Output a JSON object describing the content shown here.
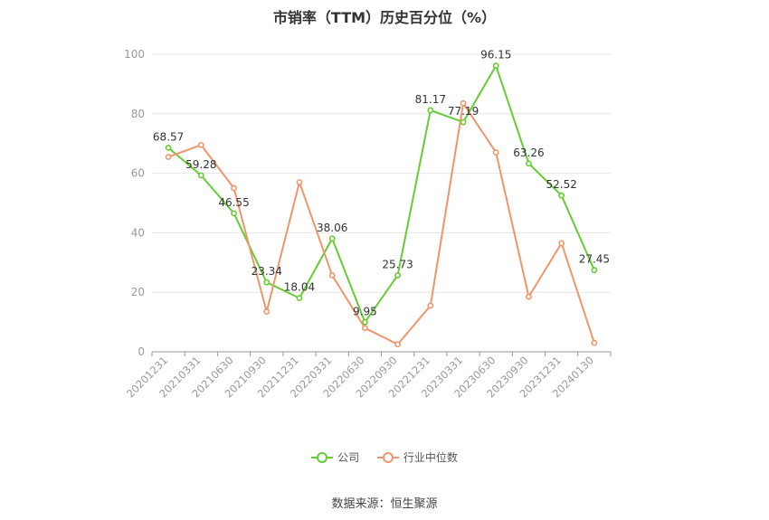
{
  "chart_data": {
    "type": "line",
    "title": "市销率（TTM）历史百分位（%）",
    "categories": [
      "20201231",
      "20210331",
      "20210630",
      "20210930",
      "20211231",
      "20220331",
      "20220630",
      "20220930",
      "20221231",
      "20230331",
      "20230630",
      "20230930",
      "20231231",
      "20240130"
    ],
    "ylim": [
      0,
      100
    ],
    "yticks": [
      0,
      20,
      40,
      60,
      80,
      100
    ],
    "grid": true,
    "legend_position": "bottom",
    "series": [
      {
        "name": "公司",
        "color": "#66cc33",
        "show_labels": true,
        "values": [
          68.57,
          59.28,
          46.55,
          23.34,
          18.04,
          38.06,
          9.95,
          25.73,
          81.17,
          77.19,
          96.15,
          63.26,
          52.52,
          27.45
        ]
      },
      {
        "name": "行业中位数",
        "color": "#f0956a",
        "show_labels": false,
        "values": [
          65.5,
          69.5,
          55.0,
          13.5,
          57.0,
          25.7,
          8.0,
          2.5,
          15.5,
          83.5,
          67.0,
          18.5,
          36.5,
          3.0
        ]
      }
    ]
  },
  "source": "数据来源：恒生聚源"
}
